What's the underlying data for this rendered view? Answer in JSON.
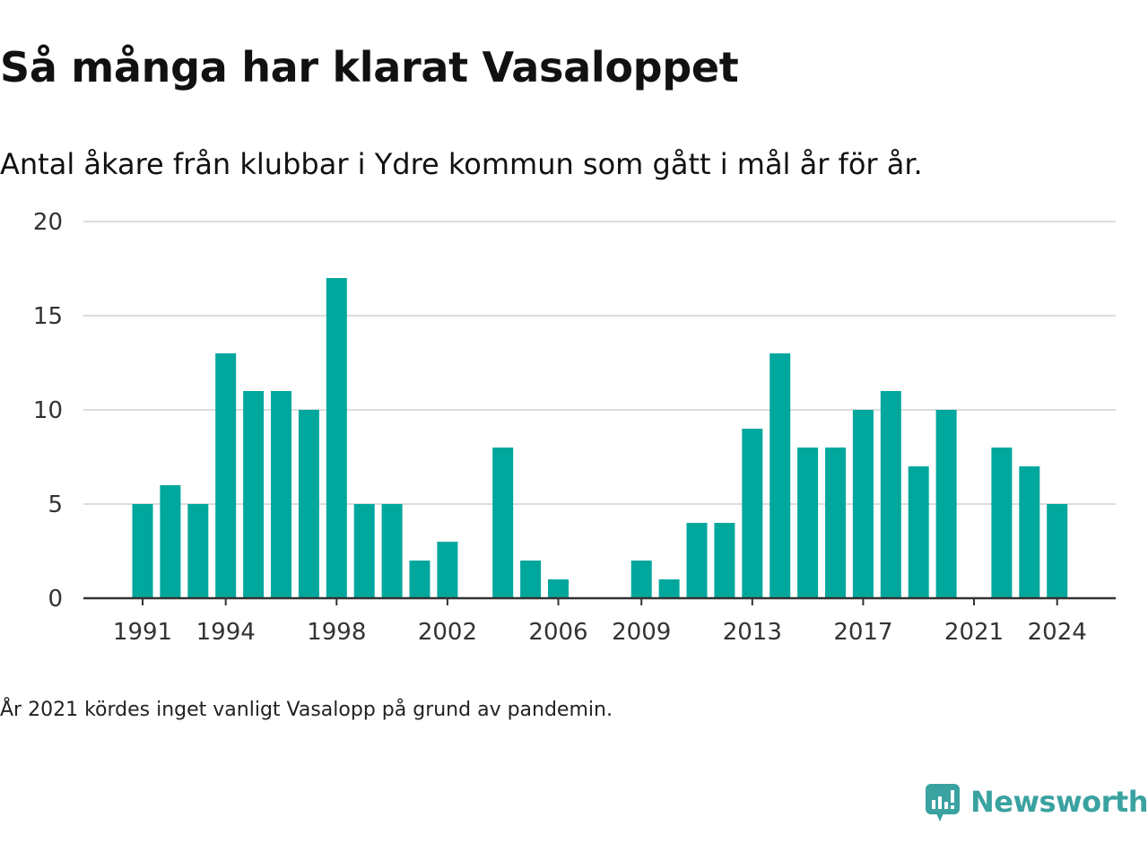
{
  "header": {
    "title": "Så många har klarat Vasaloppet",
    "subtitle": "Antal åkare från klubbar i Ydre kommun som gått i mål år för år."
  },
  "footer": {
    "note": "År 2021 kördes inget vanligt Vasalopp på grund av pandemin.",
    "brand": "Newsworthy",
    "brand_icon": "newsworthy-logo-icon"
  },
  "colors": {
    "bar": "#00a79d",
    "grid": "#dddddd",
    "axis": "#333333",
    "brand": "#3aa2a0"
  },
  "chart_data": {
    "type": "bar",
    "title": "Så många har klarat Vasaloppet",
    "subtitle": "Antal åkare från klubbar i Ydre kommun som gått i mål år för år.",
    "categories": [
      1991,
      1992,
      1993,
      1994,
      1995,
      1996,
      1997,
      1998,
      1999,
      2000,
      2001,
      2002,
      2003,
      2004,
      2005,
      2006,
      2007,
      2008,
      2009,
      2010,
      2011,
      2012,
      2013,
      2014,
      2015,
      2016,
      2017,
      2018,
      2019,
      2020,
      2021,
      2022,
      2023,
      2024
    ],
    "values": [
      5,
      6,
      5,
      13,
      11,
      11,
      10,
      17,
      5,
      5,
      2,
      3,
      0,
      8,
      2,
      1,
      0,
      0,
      2,
      1,
      4,
      4,
      9,
      13,
      8,
      8,
      10,
      11,
      7,
      10,
      0,
      8,
      7,
      5
    ],
    "x_tick_labels": [
      "1991",
      "1994",
      "1998",
      "2002",
      "2006",
      "2009",
      "2013",
      "2017",
      "2021",
      "2024"
    ],
    "y_ticks": [
      0,
      5,
      10,
      15,
      20
    ],
    "ylim": [
      0,
      20
    ],
    "grid": true,
    "legend": "none",
    "xlabel": "",
    "ylabel": ""
  }
}
